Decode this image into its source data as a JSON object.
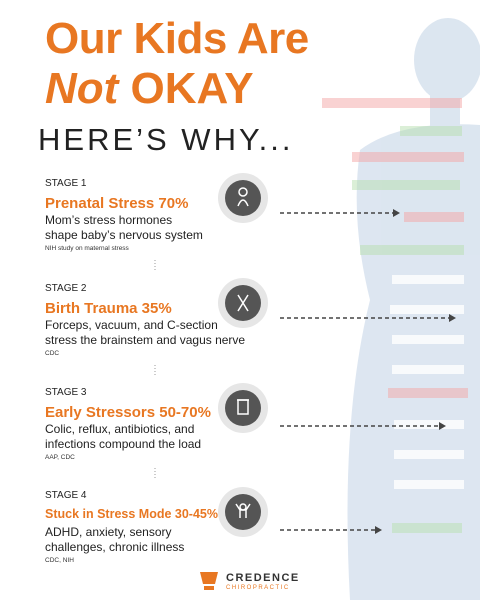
{
  "header": {
    "title_line1": "Our Kids Are",
    "title_not": "Not",
    "title_okay": "OKAY",
    "subtitle": "HERE’S WHY..."
  },
  "stages": [
    {
      "label": "STAGE 1",
      "heading": "Prenatal Stress 70%",
      "description": [
        "Mom’s stress hormones",
        "shape baby’s nervous system"
      ],
      "source": "NIH study on maternal stress"
    },
    {
      "label": "STAGE 2",
      "heading": "Birth Trauma 35%",
      "description": [
        "Forceps, vacuum, and C-section",
        "stress the brainstem and vagus nerve"
      ],
      "source": "CDC"
    },
    {
      "label": "STAGE 3",
      "heading": "Early Stressors 50-70%",
      "description": [
        "Colic, reflux, antibiotics, and",
        "infections compound the load"
      ],
      "source": "AAP, CDC"
    },
    {
      "label": "STAGE 4",
      "heading": "Stuck in Stress Mode 30-45%",
      "description": [
        "ADHD, anxiety, sensory",
        "challenges, chronic illness"
      ],
      "source": "CDC, NIH"
    }
  ],
  "brand": {
    "name": "CREDENCE",
    "tagline": "CHIROPRACTIC"
  }
}
